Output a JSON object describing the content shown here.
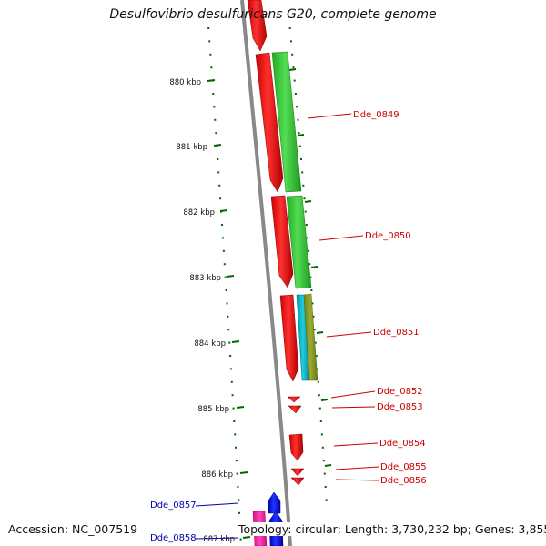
{
  "title": "Desulfovibrio desulfuricans G20, complete genome",
  "footer": {
    "accession": "Accession: NC_007519",
    "summary": "Topology: circular; Length: 3,730,232 bp; Genes: 3,855"
  },
  "colors": {
    "forward_gene": "#ff0000",
    "reverse_gene": "#0000ff",
    "green_feature": "#33cc33",
    "cyan_feature": "#00bbcc",
    "olive_feature": "#889922",
    "pink_feature": "#ff33aa",
    "tick": "#006600",
    "backbone": "#888888"
  },
  "ruler": [
    {
      "label": "880 kbp"
    },
    {
      "label": "881 kbp"
    },
    {
      "label": "882 kbp"
    },
    {
      "label": "883 kbp"
    },
    {
      "label": "884 kbp"
    },
    {
      "label": "885 kbp"
    },
    {
      "label": "886 kbp"
    },
    {
      "label": "887 kbp"
    }
  ],
  "genes": [
    {
      "name": "Dde_0849",
      "strand": "forward"
    },
    {
      "name": "Dde_0850",
      "strand": "forward"
    },
    {
      "name": "Dde_0851",
      "strand": "forward"
    },
    {
      "name": "Dde_0852",
      "strand": "forward"
    },
    {
      "name": "Dde_0853",
      "strand": "forward"
    },
    {
      "name": "Dde_0854",
      "strand": "forward"
    },
    {
      "name": "Dde_0855",
      "strand": "forward"
    },
    {
      "name": "Dde_0856",
      "strand": "forward"
    },
    {
      "name": "Dde_0857",
      "strand": "reverse"
    },
    {
      "name": "Dde_0858",
      "strand": "reverse"
    }
  ]
}
